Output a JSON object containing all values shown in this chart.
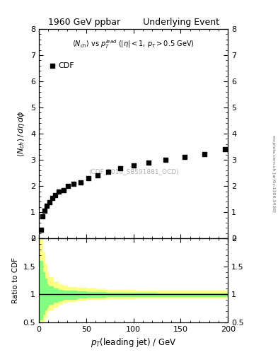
{
  "title_left": "1960 GeV ppbar",
  "title_right": "Underlying Event",
  "watermark": "(CDF_2010_S8591881_OCD)",
  "arxiv": "mcplots.cern.ch [arXiv:1306.3436]",
  "ylabel_ratio": "Ratio to CDF",
  "xlim": [
    0,
    200
  ],
  "ylim_main": [
    0,
    8
  ],
  "ylim_ratio": [
    0.5,
    2.0
  ],
  "yticks_main": [
    0,
    1,
    2,
    3,
    4,
    5,
    6,
    7,
    8
  ],
  "yticks_ratio": [
    0.5,
    1.0,
    1.5,
    2.0
  ],
  "xticks": [
    0,
    50,
    100,
    150,
    200
  ],
  "legend_label": "CDF",
  "data_x": [
    2.0,
    4.0,
    6.0,
    8.0,
    11.0,
    14.0,
    17.0,
    21.0,
    26.0,
    31.0,
    37.0,
    44.0,
    52.0,
    62.0,
    73.0,
    86.0,
    100.0,
    116.0,
    134.0,
    154.0,
    175.0,
    197.0
  ],
  "data_y": [
    0.32,
    0.85,
    1.05,
    1.25,
    1.38,
    1.55,
    1.65,
    1.78,
    1.85,
    2.0,
    2.08,
    2.15,
    2.3,
    2.42,
    2.55,
    2.68,
    2.78,
    2.9,
    3.0,
    3.1,
    3.22,
    3.4
  ],
  "yellow_band_x": [
    0,
    2,
    4,
    6,
    8,
    10,
    15,
    20,
    25,
    30,
    40,
    50,
    60,
    70,
    80,
    100,
    125,
    150,
    175,
    200
  ],
  "yellow_upper": [
    2.0,
    2.0,
    1.75,
    1.55,
    1.4,
    1.3,
    1.22,
    1.18,
    1.15,
    1.13,
    1.11,
    1.1,
    1.09,
    1.08,
    1.08,
    1.07,
    1.07,
    1.07,
    1.07,
    1.07
  ],
  "yellow_lower": [
    0.42,
    0.42,
    0.52,
    0.6,
    0.68,
    0.72,
    0.78,
    0.83,
    0.86,
    0.88,
    0.9,
    0.91,
    0.92,
    0.93,
    0.93,
    0.94,
    0.94,
    0.94,
    0.94,
    0.93
  ],
  "green_band_x": [
    0,
    2,
    4,
    6,
    8,
    10,
    15,
    20,
    25,
    30,
    40,
    50,
    60,
    70,
    80,
    100,
    125,
    150,
    175,
    200
  ],
  "green_upper": [
    1.6,
    1.6,
    1.4,
    1.28,
    1.18,
    1.14,
    1.1,
    1.08,
    1.07,
    1.06,
    1.05,
    1.04,
    1.04,
    1.03,
    1.03,
    1.03,
    1.02,
    1.02,
    1.02,
    1.03
  ],
  "green_lower": [
    0.55,
    0.55,
    0.65,
    0.73,
    0.78,
    0.82,
    0.86,
    0.89,
    0.91,
    0.92,
    0.94,
    0.95,
    0.95,
    0.96,
    0.96,
    0.97,
    0.97,
    0.97,
    0.97,
    0.96
  ],
  "yellow_color": "#ffff80",
  "green_color": "#80ff80",
  "ratio_line": 1.0,
  "marker_color": "black",
  "bg_color": "white"
}
